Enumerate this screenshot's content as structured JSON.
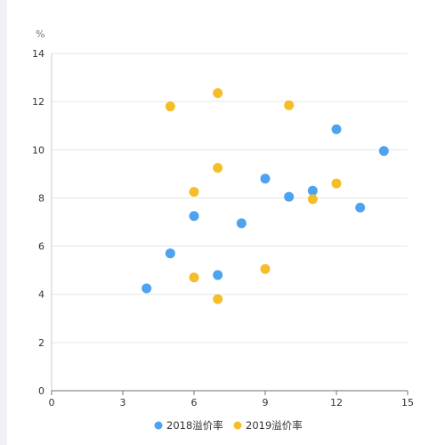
{
  "chart_data": {
    "type": "scatter",
    "y_unit": "%",
    "xlim": [
      0,
      15
    ],
    "ylim": [
      0,
      14
    ],
    "x_ticks": [
      0,
      3,
      6,
      9,
      12,
      15
    ],
    "y_ticks": [
      0,
      2,
      4,
      6,
      8,
      10,
      12,
      14
    ],
    "grid": true,
    "legend_position": "bottom-center",
    "series": [
      {
        "name": "2018溢价率",
        "color": "#4da3ef",
        "points": [
          {
            "x": 4,
            "y": 4.25
          },
          {
            "x": 5,
            "y": 5.7
          },
          {
            "x": 6,
            "y": 7.25
          },
          {
            "x": 7,
            "y": 4.8
          },
          {
            "x": 8,
            "y": 6.95
          },
          {
            "x": 9,
            "y": 8.8
          },
          {
            "x": 10,
            "y": 8.05
          },
          {
            "x": 11,
            "y": 8.3
          },
          {
            "x": 12,
            "y": 10.85
          },
          {
            "x": 13,
            "y": 7.6
          },
          {
            "x": 14,
            "y": 9.95
          }
        ]
      },
      {
        "name": "2019溢价率",
        "color": "#f5bd27",
        "points": [
          {
            "x": 5,
            "y": 11.8
          },
          {
            "x": 6,
            "y": 8.25
          },
          {
            "x": 6,
            "y": 4.7
          },
          {
            "x": 7,
            "y": 12.35
          },
          {
            "x": 7,
            "y": 9.25
          },
          {
            "x": 7,
            "y": 3.8
          },
          {
            "x": 9,
            "y": 5.05
          },
          {
            "x": 10,
            "y": 11.85
          },
          {
            "x": 11,
            "y": 7.95
          },
          {
            "x": 12,
            "y": 8.6
          }
        ]
      }
    ]
  }
}
